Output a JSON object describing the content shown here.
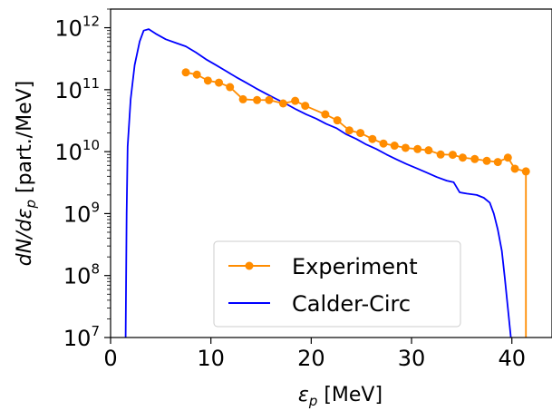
{
  "chart_data": {
    "type": "line",
    "y_scale": "log",
    "xlim": [
      0,
      44
    ],
    "ylim": [
      10000000,
      2000000000000
    ],
    "x_ticks": [
      0,
      10,
      20,
      30,
      40
    ],
    "x_tick_labels": [
      "0",
      "10",
      "20",
      "30",
      "40"
    ],
    "y_ticks": [
      {
        "value": 10000000,
        "base": "10",
        "exp": "7"
      },
      {
        "value": 100000000,
        "base": "10",
        "exp": "8"
      },
      {
        "value": 1000000000,
        "base": "10",
        "exp": "9"
      },
      {
        "value": 10000000000,
        "base": "10",
        "exp": "10"
      },
      {
        "value": 100000000000,
        "base": "10",
        "exp": "11"
      },
      {
        "value": 1000000000000,
        "base": "10",
        "exp": "12"
      }
    ],
    "xlabel": {
      "symbol": "ε",
      "sub": "p",
      "unit": " [MeV]"
    },
    "ylabel": {
      "p1": "dN/dε",
      "sub": "p",
      "p2": " [part./MeV]"
    },
    "grid": false,
    "legend_position": "lower-center",
    "series": [
      {
        "name": "Experiment",
        "color": "#ff8c00",
        "marker": "circle",
        "points": [
          [
            7.5,
            190000000000.0
          ],
          [
            8.6,
            175000000000.0
          ],
          [
            9.7,
            140000000000.0
          ],
          [
            10.8,
            130000000000.0
          ],
          [
            11.9,
            110000000000.0
          ],
          [
            13.2,
            70000000000.0
          ],
          [
            14.6,
            68000000000.0
          ],
          [
            15.8,
            68000000000.0
          ],
          [
            17.2,
            60000000000.0
          ],
          [
            18.4,
            66000000000.0
          ],
          [
            19.4,
            55000000000.0
          ],
          [
            21.4,
            40000000000.0
          ],
          [
            22.6,
            32000000000.0
          ],
          [
            23.8,
            22000000000.0
          ],
          [
            24.9,
            20000000000.0
          ],
          [
            26.1,
            16000000000.0
          ],
          [
            27.2,
            13500000000.0
          ],
          [
            28.3,
            12500000000.0
          ],
          [
            29.4,
            11500000000.0
          ],
          [
            30.6,
            11000000000.0
          ],
          [
            31.7,
            10500000000.0
          ],
          [
            32.9,
            9000000000.0
          ],
          [
            34.1,
            8900000000.0
          ],
          [
            35.1,
            8000000000.0
          ],
          [
            36.3,
            7600000000.0
          ],
          [
            37.5,
            7100000000.0
          ],
          [
            38.6,
            6800000000.0
          ],
          [
            39.6,
            8000000000.0
          ],
          [
            40.3,
            5300000000.0
          ],
          [
            41.4,
            4800000000.0
          ],
          [
            41.4,
            10000000.0
          ]
        ]
      },
      {
        "name": "Calder-Circ",
        "color": "#0000ff",
        "marker": "none",
        "points": [
          [
            1.5,
            10000000.0
          ],
          [
            1.6,
            1000000000.0
          ],
          [
            1.7,
            12000000000.0
          ],
          [
            2.0,
            70000000000.0
          ],
          [
            2.4,
            250000000000.0
          ],
          [
            2.9,
            600000000000.0
          ],
          [
            3.3,
            900000000000.0
          ],
          [
            3.8,
            950000000000.0
          ],
          [
            4.5,
            800000000000.0
          ],
          [
            5.5,
            650000000000.0
          ],
          [
            6.5,
            570000000000.0
          ],
          [
            7.5,
            500000000000.0
          ],
          [
            8.5,
            400000000000.0
          ],
          [
            9.5,
            310000000000.0
          ],
          [
            10.5,
            250000000000.0
          ],
          [
            11.5,
            200000000000.0
          ],
          [
            12.5,
            160000000000.0
          ],
          [
            13.5,
            130000000000.0
          ],
          [
            14.5,
            105000000000.0
          ],
          [
            15.5,
            86000000000.0
          ],
          [
            16.5,
            71000000000.0
          ],
          [
            17.5,
            59000000000.0
          ],
          [
            18.5,
            48000000000.0
          ],
          [
            19.5,
            40000000000.0
          ],
          [
            20.5,
            34000000000.0
          ],
          [
            21.5,
            28000000000.0
          ],
          [
            22.5,
            24000000000.0
          ],
          [
            23.5,
            19000000000.0
          ],
          [
            24.5,
            16000000000.0
          ],
          [
            25.5,
            13000000000.0
          ],
          [
            26.5,
            11000000000.0
          ],
          [
            27.5,
            9000000000.0
          ],
          [
            28.5,
            7500000000.0
          ],
          [
            29.5,
            6300000000.0
          ],
          [
            30.5,
            5400000000.0
          ],
          [
            31.5,
            4600000000.0
          ],
          [
            32.5,
            3900000000.0
          ],
          [
            33.5,
            3400000000.0
          ],
          [
            34.2,
            3200000000.0
          ],
          [
            34.8,
            2200000000.0
          ],
          [
            35.5,
            2100000000.0
          ],
          [
            36.5,
            2000000000.0
          ],
          [
            37.2,
            1800000000.0
          ],
          [
            37.8,
            1500000000.0
          ],
          [
            38.2,
            1000000000.0
          ],
          [
            38.6,
            550000000.0
          ],
          [
            39.0,
            250000000.0
          ],
          [
            39.3,
            90000000.0
          ],
          [
            39.6,
            30000000.0
          ],
          [
            39.9,
            10000000.0
          ]
        ]
      }
    ]
  }
}
